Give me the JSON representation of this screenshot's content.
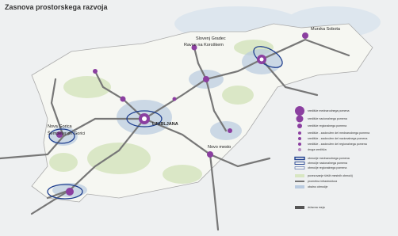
{
  "title": "Zasnova prostorskega razvoja",
  "cities": [
    "Slovenj Gradec",
    "Ravne na Koroškem",
    "Murska Sobota",
    "LJUBLJANA",
    "Nova Gorica",
    "Šempeter pri Gorici",
    "Novo mesto"
  ],
  "legend": [
    "središče mednarodnega pomena",
    "središče nacionalnega pomena",
    "središče regionalnega pomena",
    "središče - zaokrožen del mednarodnega pomena",
    "središče - zaokrožen del nacionalnega pomena",
    "središče - zaokrožen del regionalnega pomena",
    "druga središča",
    "območje mednarodnega pomena",
    "območje nacionalnega pomena",
    "območje regionalnega pomena",
    "povezovanje širših mestnih območij",
    "prometna infrastruktura",
    "obalno območje",
    "državna meja"
  ]
}
